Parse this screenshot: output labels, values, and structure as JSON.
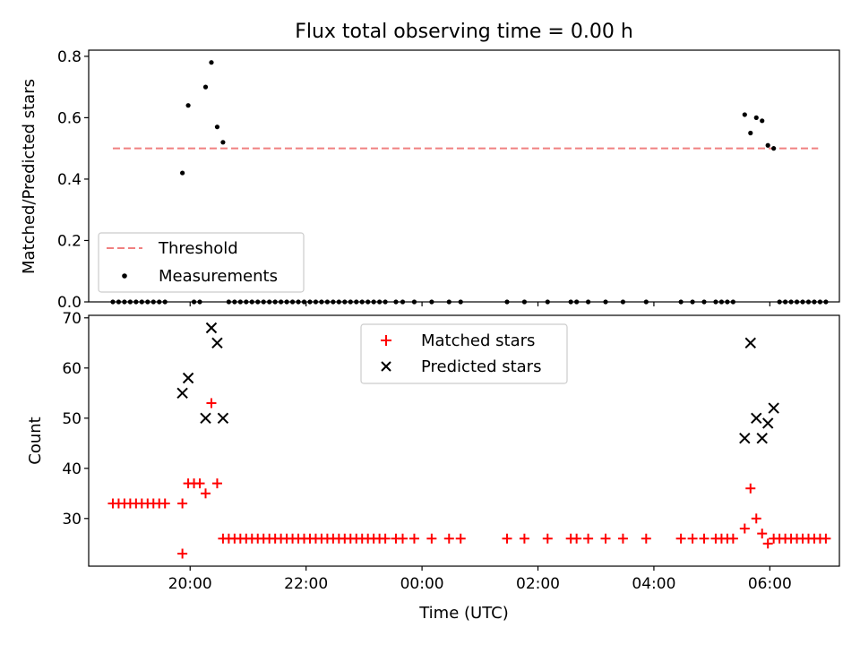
{
  "chart_data": {
    "title": "Flux total observing time = 0.00 h",
    "xlabel": "Time (UTC)",
    "x_tick_labels": [
      "20:00",
      "22:00",
      "00:00",
      "02:00",
      "04:00",
      "06:00"
    ],
    "x_ticks_hours": [
      20,
      22,
      24,
      26,
      28,
      30
    ],
    "xlim_hours": [
      18.25,
      31.2
    ],
    "panels": [
      {
        "type": "scatter",
        "ylabel": "Matched/Predicted stars",
        "ylim": [
          0,
          0.82
        ],
        "y_ticks": [
          0.0,
          0.2,
          0.4,
          0.6,
          0.8
        ],
        "y_tick_labels": [
          "0.0",
          "0.2",
          "0.4",
          "0.6",
          "0.8"
        ],
        "legend_position": "lower-left",
        "threshold": {
          "name": "Threshold",
          "value": 0.5,
          "x_range": [
            "18:40",
            "06:50"
          ],
          "color": "#f08080"
        },
        "measurements": {
          "name": "Measurements",
          "color": "#000000",
          "points": [
            [
              "18:40",
              0
            ],
            [
              "18:46",
              0
            ],
            [
              "18:52",
              0
            ],
            [
              "18:58",
              0
            ],
            [
              "19:04",
              0
            ],
            [
              "19:10",
              0
            ],
            [
              "19:16",
              0
            ],
            [
              "19:22",
              0
            ],
            [
              "19:28",
              0
            ],
            [
              "19:34",
              0
            ],
            [
              "19:52",
              0.42
            ],
            [
              "19:58",
              0.64
            ],
            [
              "20:04",
              0
            ],
            [
              "20:10",
              0
            ],
            [
              "20:16",
              0.7
            ],
            [
              "20:22",
              0.78
            ],
            [
              "20:28",
              0.57
            ],
            [
              "20:34",
              0.52
            ],
            [
              "20:40",
              0
            ],
            [
              "20:46",
              0
            ],
            [
              "20:52",
              0
            ],
            [
              "20:58",
              0
            ],
            [
              "21:04",
              0
            ],
            [
              "21:10",
              0
            ],
            [
              "21:16",
              0
            ],
            [
              "21:22",
              0
            ],
            [
              "21:28",
              0
            ],
            [
              "21:34",
              0
            ],
            [
              "21:40",
              0
            ],
            [
              "21:46",
              0
            ],
            [
              "21:52",
              0
            ],
            [
              "21:58",
              0
            ],
            [
              "22:04",
              0
            ],
            [
              "22:10",
              0
            ],
            [
              "22:16",
              0
            ],
            [
              "22:22",
              0
            ],
            [
              "22:28",
              0
            ],
            [
              "22:34",
              0
            ],
            [
              "22:40",
              0
            ],
            [
              "22:46",
              0
            ],
            [
              "22:52",
              0
            ],
            [
              "22:58",
              0
            ],
            [
              "23:04",
              0
            ],
            [
              "23:10",
              0
            ],
            [
              "23:16",
              0
            ],
            [
              "23:22",
              0
            ],
            [
              "23:33",
              0
            ],
            [
              "23:40",
              0
            ],
            [
              "23:52",
              0
            ],
            [
              "00:10",
              0
            ],
            [
              "00:28",
              0
            ],
            [
              "00:40",
              0
            ],
            [
              "01:28",
              0
            ],
            [
              "01:46",
              0
            ],
            [
              "02:10",
              0
            ],
            [
              "02:34",
              0
            ],
            [
              "02:40",
              0
            ],
            [
              "02:52",
              0
            ],
            [
              "03:10",
              0
            ],
            [
              "03:28",
              0
            ],
            [
              "03:52",
              0
            ],
            [
              "04:28",
              0
            ],
            [
              "04:40",
              0
            ],
            [
              "04:52",
              0
            ],
            [
              "05:04",
              0
            ],
            [
              "05:10",
              0
            ],
            [
              "05:16",
              0
            ],
            [
              "05:22",
              0
            ],
            [
              "05:34",
              0.61
            ],
            [
              "05:40",
              0.55
            ],
            [
              "05:46",
              0.6
            ],
            [
              "05:52",
              0.59
            ],
            [
              "05:58",
              0.51
            ],
            [
              "06:04",
              0.5
            ],
            [
              "06:10",
              0
            ],
            [
              "06:16",
              0
            ],
            [
              "06:22",
              0
            ],
            [
              "06:28",
              0
            ],
            [
              "06:34",
              0
            ],
            [
              "06:40",
              0
            ],
            [
              "06:46",
              0
            ],
            [
              "06:52",
              0
            ],
            [
              "06:58",
              0
            ]
          ]
        }
      },
      {
        "type": "scatter",
        "ylabel": "Count",
        "ylim": [
          20.5,
          70.5
        ],
        "y_ticks": [
          30,
          40,
          50,
          60,
          70
        ],
        "y_tick_labels": [
          "30",
          "40",
          "50",
          "60",
          "70"
        ],
        "legend_position": "upper-center",
        "series": [
          {
            "name": "Matched stars",
            "marker": "+",
            "color": "#ff0000",
            "points": [
              [
                "18:40",
                33
              ],
              [
                "18:46",
                33
              ],
              [
                "18:52",
                33
              ],
              [
                "18:58",
                33
              ],
              [
                "19:04",
                33
              ],
              [
                "19:10",
                33
              ],
              [
                "19:16",
                33
              ],
              [
                "19:22",
                33
              ],
              [
                "19:28",
                33
              ],
              [
                "19:34",
                33
              ],
              [
                "19:52",
                33
              ],
              [
                "19:52",
                23
              ],
              [
                "19:58",
                37
              ],
              [
                "20:04",
                37
              ],
              [
                "20:10",
                37
              ],
              [
                "20:16",
                35
              ],
              [
                "20:22",
                53
              ],
              [
                "20:28",
                37
              ],
              [
                "20:34",
                26
              ],
              [
                "20:40",
                26
              ],
              [
                "20:46",
                26
              ],
              [
                "20:52",
                26
              ],
              [
                "20:58",
                26
              ],
              [
                "21:04",
                26
              ],
              [
                "21:10",
                26
              ],
              [
                "21:16",
                26
              ],
              [
                "21:22",
                26
              ],
              [
                "21:28",
                26
              ],
              [
                "21:34",
                26
              ],
              [
                "21:40",
                26
              ],
              [
                "21:46",
                26
              ],
              [
                "21:52",
                26
              ],
              [
                "21:58",
                26
              ],
              [
                "22:04",
                26
              ],
              [
                "22:10",
                26
              ],
              [
                "22:16",
                26
              ],
              [
                "22:22",
                26
              ],
              [
                "22:28",
                26
              ],
              [
                "22:34",
                26
              ],
              [
                "22:40",
                26
              ],
              [
                "22:46",
                26
              ],
              [
                "22:52",
                26
              ],
              [
                "22:58",
                26
              ],
              [
                "23:04",
                26
              ],
              [
                "23:10",
                26
              ],
              [
                "23:16",
                26
              ],
              [
                "23:22",
                26
              ],
              [
                "23:33",
                26
              ],
              [
                "23:40",
                26
              ],
              [
                "23:52",
                26
              ],
              [
                "00:10",
                26
              ],
              [
                "00:28",
                26
              ],
              [
                "00:40",
                26
              ],
              [
                "01:28",
                26
              ],
              [
                "01:46",
                26
              ],
              [
                "02:10",
                26
              ],
              [
                "02:34",
                26
              ],
              [
                "02:40",
                26
              ],
              [
                "02:52",
                26
              ],
              [
                "03:10",
                26
              ],
              [
                "03:28",
                26
              ],
              [
                "03:52",
                26
              ],
              [
                "04:28",
                26
              ],
              [
                "04:40",
                26
              ],
              [
                "04:52",
                26
              ],
              [
                "05:04",
                26
              ],
              [
                "05:10",
                26
              ],
              [
                "05:16",
                26
              ],
              [
                "05:22",
                26
              ],
              [
                "05:34",
                28
              ],
              [
                "05:40",
                36
              ],
              [
                "05:46",
                30
              ],
              [
                "05:52",
                27
              ],
              [
                "05:58",
                25
              ],
              [
                "06:04",
                26
              ],
              [
                "06:10",
                26
              ],
              [
                "06:16",
                26
              ],
              [
                "06:22",
                26
              ],
              [
                "06:28",
                26
              ],
              [
                "06:34",
                26
              ],
              [
                "06:40",
                26
              ],
              [
                "06:46",
                26
              ],
              [
                "06:52",
                26
              ],
              [
                "06:58",
                26
              ]
            ]
          },
          {
            "name": "Predicted stars",
            "marker": "x",
            "color": "#000000",
            "points": [
              [
                "19:52",
                55
              ],
              [
                "19:58",
                58
              ],
              [
                "20:16",
                50
              ],
              [
                "20:22",
                68
              ],
              [
                "20:28",
                65
              ],
              [
                "20:34",
                50
              ],
              [
                "05:34",
                46
              ],
              [
                "05:40",
                65
              ],
              [
                "05:46",
                50
              ],
              [
                "05:52",
                46
              ],
              [
                "05:58",
                49
              ],
              [
                "06:04",
                52
              ]
            ]
          }
        ]
      }
    ]
  }
}
